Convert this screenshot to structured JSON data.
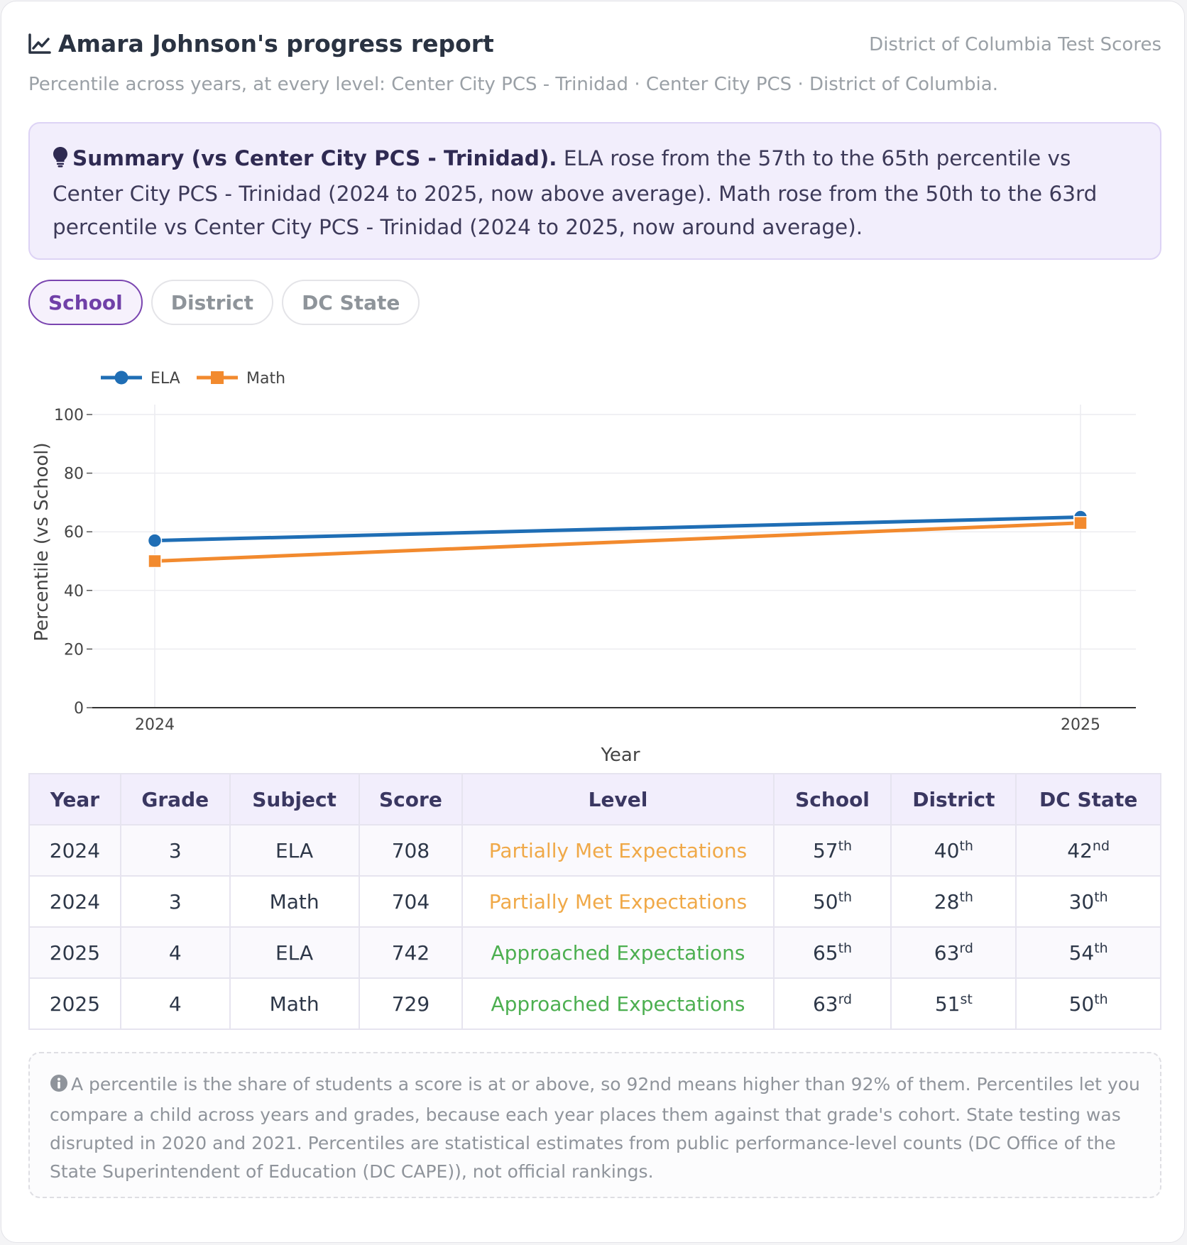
{
  "header": {
    "title": "Amara Johnson's progress report",
    "source": "District of Columbia Test Scores",
    "subtitle": "Percentile across years, at every level: Center City PCS - Trinidad · Center City PCS · District of Columbia."
  },
  "summary": {
    "heading": "Summary (vs Center City PCS - Trinidad).",
    "text": " ELA rose from the 57th to the 65th percentile vs Center City PCS - Trinidad (2024 to 2025, now above average). Math rose from the 50th to the 63rd percentile vs Center City PCS - Trinidad (2024 to 2025, now around average)."
  },
  "tabs": [
    {
      "label": "School",
      "active": true
    },
    {
      "label": "District",
      "active": false
    },
    {
      "label": "DC State",
      "active": false
    }
  ],
  "chart_data": {
    "type": "line",
    "xlabel": "Year",
    "ylabel": "Percentile (vs School)",
    "x": [
      2024,
      2025
    ],
    "ylim": [
      0,
      100
    ],
    "yticks": [
      0,
      20,
      40,
      60,
      80,
      100
    ],
    "grid": true,
    "legend": "top-left",
    "series": [
      {
        "name": "ELA",
        "values": [
          57,
          65
        ],
        "color": "#1f6eb5",
        "marker": "circle"
      },
      {
        "name": "Math",
        "values": [
          50,
          63
        ],
        "color": "#f28a2e",
        "marker": "square"
      }
    ]
  },
  "table": {
    "headers": [
      "Year",
      "Grade",
      "Subject",
      "Score",
      "Level",
      "School",
      "District",
      "DC State"
    ],
    "rows": [
      {
        "year": "2024",
        "grade": "3",
        "subject": "ELA",
        "score": "708",
        "level": "Partially Met Expectations",
        "level_kind": "partial",
        "school": [
          "57",
          "th"
        ],
        "district": [
          "40",
          "th"
        ],
        "state": [
          "42",
          "nd"
        ]
      },
      {
        "year": "2024",
        "grade": "3",
        "subject": "Math",
        "score": "704",
        "level": "Partially Met Expectations",
        "level_kind": "partial",
        "school": [
          "50",
          "th"
        ],
        "district": [
          "28",
          "th"
        ],
        "state": [
          "30",
          "th"
        ]
      },
      {
        "year": "2025",
        "grade": "4",
        "subject": "ELA",
        "score": "742",
        "level": "Approached Expectations",
        "level_kind": "approach",
        "school": [
          "65",
          "th"
        ],
        "district": [
          "63",
          "rd"
        ],
        "state": [
          "54",
          "th"
        ]
      },
      {
        "year": "2025",
        "grade": "4",
        "subject": "Math",
        "score": "729",
        "level": "Approached Expectations",
        "level_kind": "approach",
        "school": [
          "63",
          "rd"
        ],
        "district": [
          "51",
          "st"
        ],
        "state": [
          "50",
          "th"
        ]
      }
    ]
  },
  "colors": {
    "level_partial": "#f0a948",
    "level_approach": "#4caf50",
    "accent": "#7040a8"
  },
  "note": {
    "text": "A percentile is the share of students a score is at or above, so 92nd means higher than 92% of them. Percentiles let you compare a child across years and grades, because each year places them against that grade's cohort. State testing was disrupted in 2020 and 2021. Percentiles are statistical estimates from public performance-level counts (DC Office of the State Superintendent of Education (DC CAPE)), not official rankings."
  }
}
